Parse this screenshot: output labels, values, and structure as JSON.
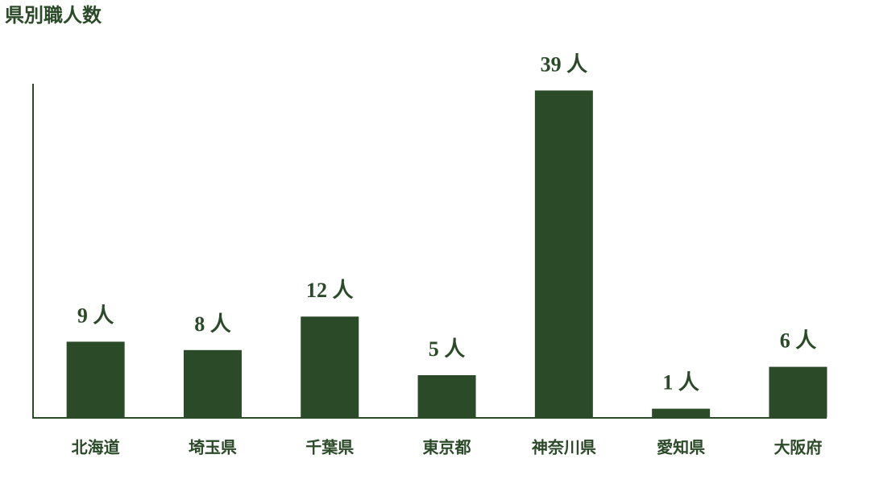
{
  "chart_data": {
    "type": "bar",
    "title": "県別職人数",
    "categories": [
      "北海道",
      "埼玉県",
      "千葉県",
      "東京都",
      "神奈川県",
      "愛知県",
      "大阪府"
    ],
    "values": [
      9,
      8,
      12,
      5,
      39,
      1,
      6
    ],
    "value_labels": [
      "9 人",
      "8 人",
      "12 人",
      "5 人",
      "39 人",
      "1 人",
      "6 人"
    ],
    "color": "#2b4a28",
    "ylim": [
      0,
      40
    ]
  }
}
